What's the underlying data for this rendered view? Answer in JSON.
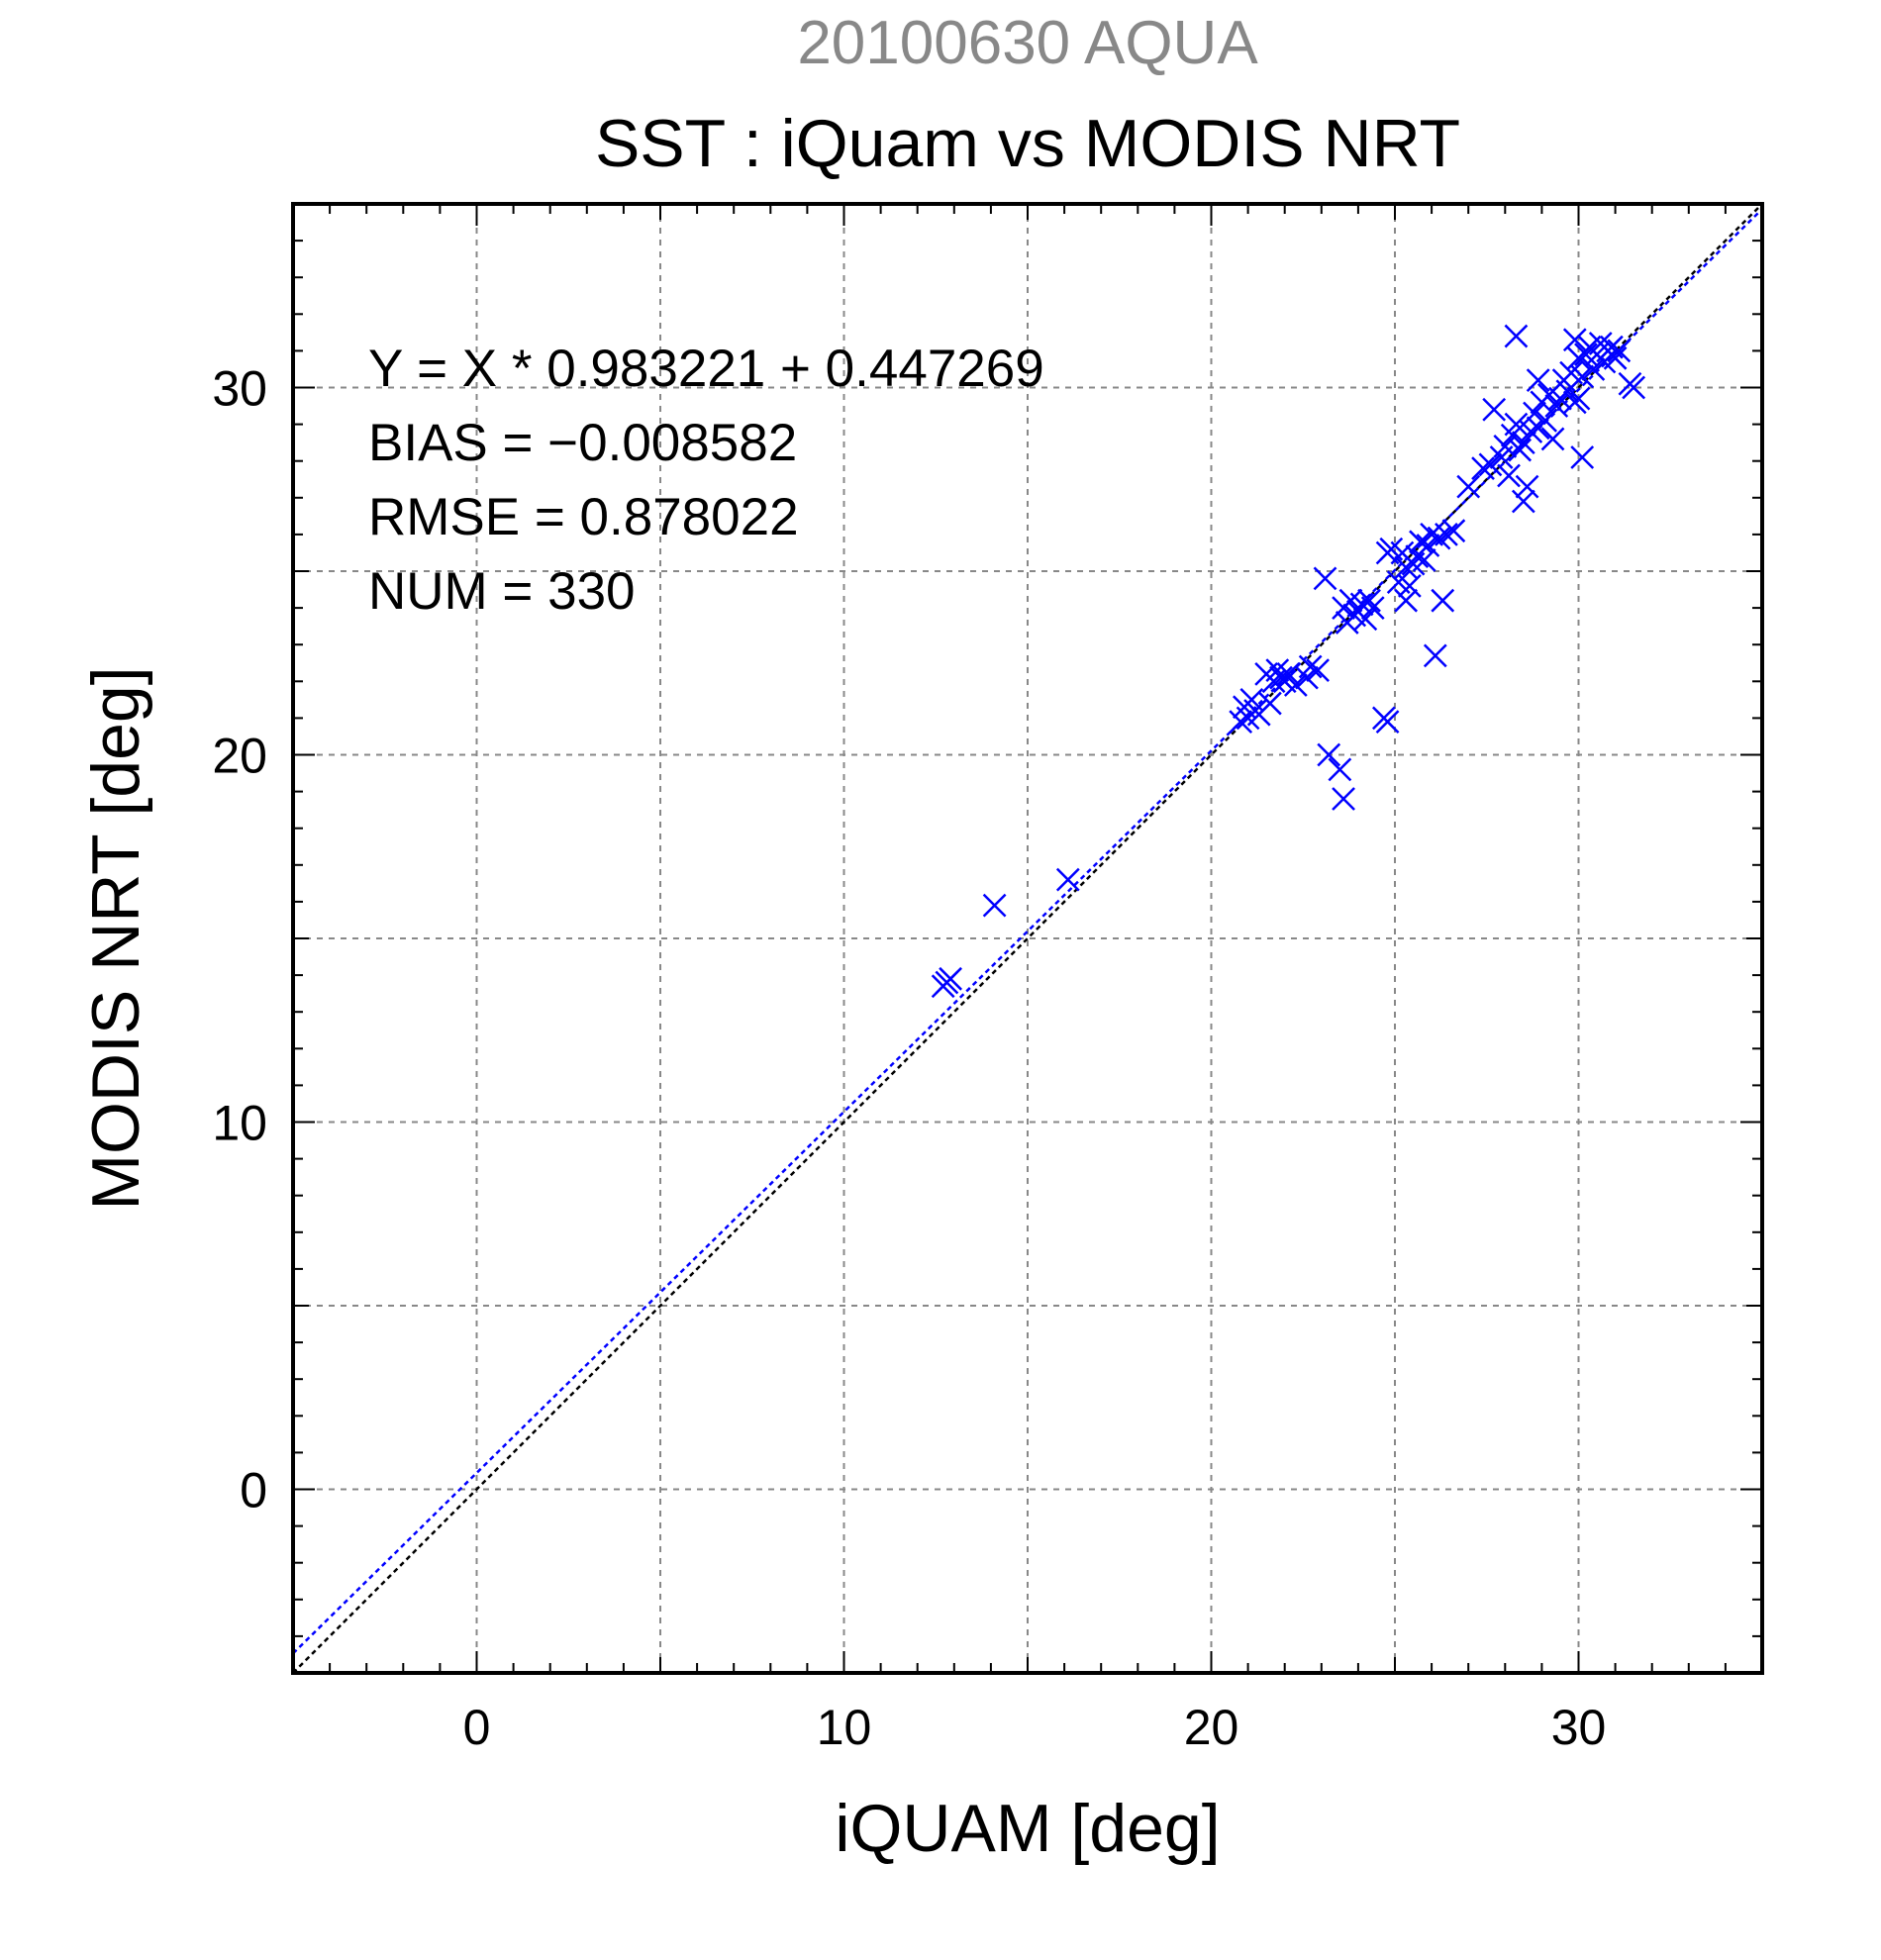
{
  "chart_data": {
    "type": "scatter",
    "title": "SST : iQuam vs MODIS NRT",
    "subtitle": "20100630 AQUA",
    "xlabel": "iQUAM [deg]",
    "ylabel": "MODIS NRT [deg]",
    "xlim": [
      -5,
      35
    ],
    "ylim": [
      -5,
      35
    ],
    "xticks": [
      "0",
      "10",
      "20",
      "30"
    ],
    "yticks": [
      "0",
      "10",
      "20",
      "30"
    ],
    "grid": true,
    "marker": "x",
    "colors": {
      "points": "#0000ff",
      "fit_line": "#0000ff",
      "one_to_one": "#000000",
      "subtitle": "#888888"
    },
    "stats": [
      "Y = X * 0.983221 + 0.447269",
      "BIAS = −0.008582",
      "RMSE = 0.878022",
      "NUM = 330"
    ],
    "fit": {
      "slope": 0.983221,
      "intercept": 0.447269
    },
    "points": [
      [
        12.8,
        13.8
      ],
      [
        12.9,
        13.9
      ],
      [
        12.7,
        13.7
      ],
      [
        14.1,
        15.9
      ],
      [
        16.1,
        16.6
      ],
      [
        20.8,
        20.9
      ],
      [
        20.9,
        21.3
      ],
      [
        21.0,
        21.0
      ],
      [
        21.1,
        21.5
      ],
      [
        21.2,
        21.2
      ],
      [
        21.3,
        21.1
      ],
      [
        21.5,
        22.2
      ],
      [
        21.6,
        21.4
      ],
      [
        21.7,
        22.0
      ],
      [
        21.8,
        22.3
      ],
      [
        21.9,
        22.1
      ],
      [
        22.0,
        22.0
      ],
      [
        22.1,
        22.2
      ],
      [
        22.3,
        21.9
      ],
      [
        22.6,
        22.1
      ],
      [
        22.7,
        22.4
      ],
      [
        22.9,
        22.3
      ],
      [
        23.1,
        24.8
      ],
      [
        23.2,
        20.0
      ],
      [
        23.5,
        19.6
      ],
      [
        23.6,
        18.8
      ],
      [
        23.6,
        24.0
      ],
      [
        23.7,
        23.6
      ],
      [
        23.8,
        24.2
      ],
      [
        23.9,
        23.8
      ],
      [
        24.0,
        23.9
      ],
      [
        24.1,
        24.1
      ],
      [
        24.2,
        23.7
      ],
      [
        24.3,
        24.2
      ],
      [
        24.4,
        24.0
      ],
      [
        24.7,
        21.0
      ],
      [
        24.8,
        20.9
      ],
      [
        24.8,
        25.5
      ],
      [
        24.9,
        25.6
      ],
      [
        25.1,
        24.7
      ],
      [
        25.2,
        25.5
      ],
      [
        25.3,
        25.1
      ],
      [
        25.3,
        24.2
      ],
      [
        25.4,
        24.6
      ],
      [
        25.5,
        25.2
      ],
      [
        25.6,
        25.4
      ],
      [
        25.7,
        25.8
      ],
      [
        25.8,
        25.3
      ],
      [
        25.9,
        25.7
      ],
      [
        26.0,
        26.0
      ],
      [
        26.1,
        22.7
      ],
      [
        26.2,
        25.9
      ],
      [
        26.3,
        24.2
      ],
      [
        26.4,
        26.0
      ],
      [
        26.6,
        26.1
      ],
      [
        27.0,
        27.3
      ],
      [
        27.4,
        27.8
      ],
      [
        27.6,
        27.9
      ],
      [
        27.7,
        29.4
      ],
      [
        27.9,
        28.1
      ],
      [
        28.0,
        28.4
      ],
      [
        28.1,
        27.6
      ],
      [
        28.2,
        28.7
      ],
      [
        28.3,
        29.0
      ],
      [
        28.4,
        28.3
      ],
      [
        28.5,
        28.5
      ],
      [
        28.5,
        26.9
      ],
      [
        28.6,
        27.3
      ],
      [
        28.7,
        28.8
      ],
      [
        28.8,
        29.3
      ],
      [
        28.9,
        28.9
      ],
      [
        29.0,
        29.6
      ],
      [
        29.1,
        29.1
      ],
      [
        29.2,
        29.8
      ],
      [
        29.3,
        28.6
      ],
      [
        29.4,
        29.5
      ],
      [
        29.5,
        29.7
      ],
      [
        29.6,
        30.2
      ],
      [
        29.7,
        29.9
      ],
      [
        29.8,
        30.4
      ],
      [
        29.9,
        29.6
      ],
      [
        30.0,
        30.8
      ],
      [
        30.1,
        30.3
      ],
      [
        30.1,
        28.1
      ],
      [
        30.2,
        30.9
      ],
      [
        30.3,
        31.1
      ],
      [
        30.4,
        30.5
      ],
      [
        30.5,
        30.9
      ],
      [
        30.6,
        31.2
      ],
      [
        30.7,
        30.7
      ],
      [
        30.8,
        31.0
      ],
      [
        30.9,
        31.1
      ],
      [
        31.0,
        30.8
      ],
      [
        31.1,
        31.0
      ],
      [
        31.4,
        30.1
      ],
      [
        31.5,
        30.0
      ],
      [
        28.3,
        31.4
      ],
      [
        29.9,
        31.3
      ],
      [
        28.9,
        30.2
      ],
      [
        30.0,
        29.7
      ]
    ]
  }
}
